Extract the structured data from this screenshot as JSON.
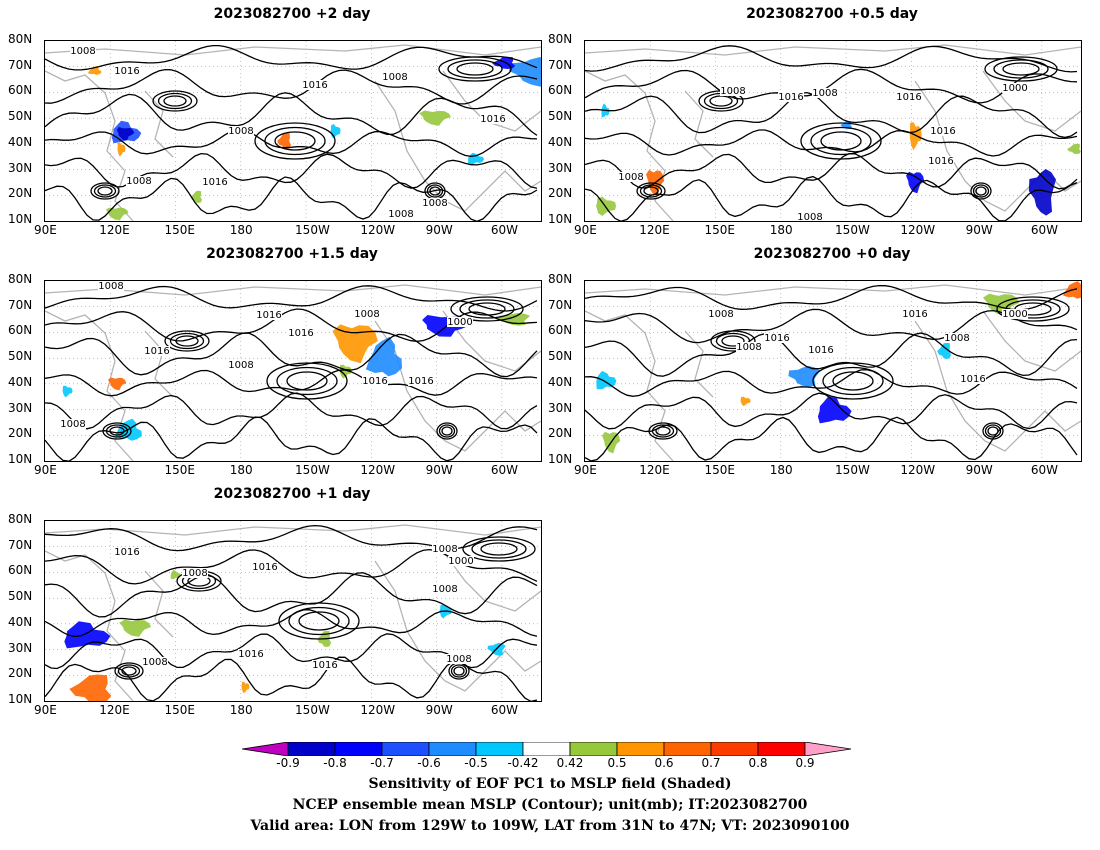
{
  "panels": [
    {
      "id": "p1",
      "title": "2023082700 +2 day"
    },
    {
      "id": "p2",
      "title": "2023082700 +0.5 day"
    },
    {
      "id": "p3",
      "title": "2023082700 +1.5 day"
    },
    {
      "id": "p4",
      "title": "2023082700 +0 day"
    },
    {
      "id": "p5",
      "title": "2023082700 +1 day"
    }
  ],
  "axes": {
    "lat_ticks": [
      "80N",
      "70N",
      "60N",
      "50N",
      "40N",
      "30N",
      "20N",
      "10N"
    ],
    "lon_ticks": [
      "90E",
      "120E",
      "150E",
      "180",
      "150W",
      "120W",
      "90W",
      "60W"
    ]
  },
  "colorbar": {
    "labels": [
      "-0.9",
      "-0.8",
      "-0.7",
      "-0.6",
      "-0.5",
      "-0.42",
      "0.42",
      "0.5",
      "0.6",
      "0.7",
      "0.8",
      "0.9"
    ],
    "colors": [
      "#c000c0",
      "#0000c8",
      "#0000ff",
      "#1e50ff",
      "#1e8cff",
      "#00c8ff",
      "#ffffff",
      "#96c83c",
      "#ff9600",
      "#ff6400",
      "#ff3c00",
      "#ff0000",
      "#ffa0c8"
    ]
  },
  "contour_labels": {
    "p1": [
      "1008",
      "1016",
      "1016",
      "1008",
      "1008",
      "1016",
      "1016",
      "1008",
      "1008",
      "1008"
    ],
    "p2": [
      "1008",
      "1016",
      "1008",
      "1016",
      "1000",
      "1016",
      "1016",
      "1008",
      "1008"
    ],
    "p3": [
      "1008",
      "1016",
      "1016",
      "1016",
      "1008",
      "1000",
      "1016",
      "1016",
      "1008",
      "1008"
    ],
    "p4": [
      "1008",
      "1016",
      "1016",
      "1008",
      "1016",
      "1000",
      "1008",
      "1016"
    ],
    "p5": [
      "1016",
      "1008",
      "1016",
      "1008",
      "1000",
      "1008",
      "1016",
      "1016",
      "1008",
      "1008"
    ]
  },
  "caption": {
    "line1": "Sensitivity of EOF PC1 to MSLP field (Shaded)",
    "line2": "NCEP ensemble mean MSLP (Contour); unit(mb); IT:2023082700",
    "line3": "Valid area: LON from 129W to 109W, LAT from 31N to 47N; VT: 2023090100"
  }
}
